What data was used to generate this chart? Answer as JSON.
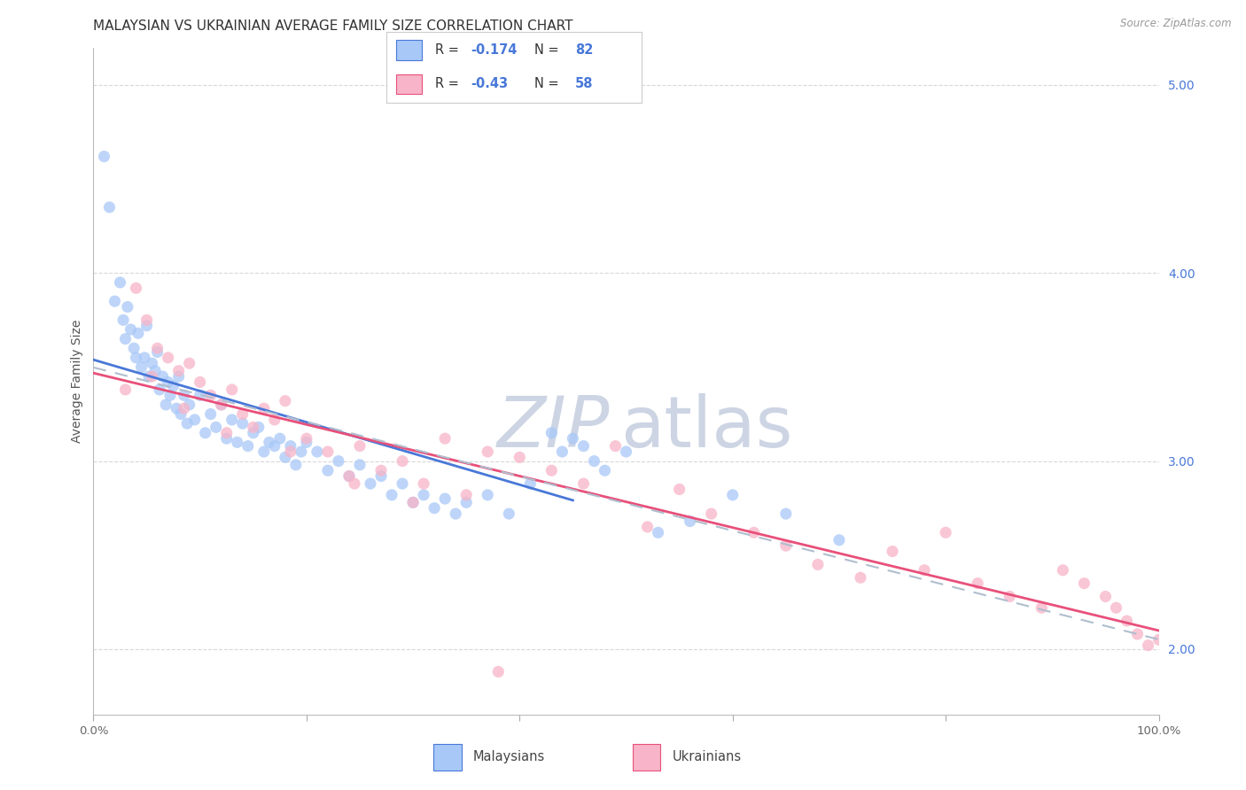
{
  "title": "MALAYSIAN VS UKRAINIAN AVERAGE FAMILY SIZE CORRELATION CHART",
  "source": "Source: ZipAtlas.com",
  "ylabel": "Average Family Size",
  "malaysia_R": -0.174,
  "malaysia_N": 82,
  "ukraine_R": -0.43,
  "ukraine_N": 58,
  "malaysia_color": "#a8c8f8",
  "ukraine_color": "#f8b4c8",
  "malaysia_line_color": "#4878d8",
  "ukraine_line_color": "#e8507a",
  "combined_line_color": "#b0bece",
  "right_tick_color": "#4878d8",
  "background_color": "#ffffff",
  "grid_color": "#d8d8d8",
  "title_fontsize": 11,
  "axis_label_fontsize": 10,
  "tick_fontsize": 9.5,
  "watermark_zip_color": "#cdd5e4",
  "watermark_atlas_color": "#cdd5e4",
  "xlim": [
    0,
    100
  ],
  "ylim": [
    1.65,
    5.2
  ],
  "yticks": [
    2.0,
    3.0,
    4.0,
    5.0
  ],
  "xticks": [
    0,
    20,
    40,
    60,
    80,
    100
  ],
  "xtick_labels": [
    "0.0%",
    "",
    "",
    "",
    "",
    "100.0%"
  ],
  "malaysia_x": [
    1.0,
    1.5,
    2.0,
    2.5,
    2.8,
    3.0,
    3.2,
    3.5,
    3.8,
    4.0,
    4.2,
    4.5,
    4.8,
    5.0,
    5.2,
    5.5,
    5.8,
    6.0,
    6.2,
    6.5,
    6.8,
    7.0,
    7.2,
    7.5,
    7.8,
    8.0,
    8.2,
    8.5,
    8.8,
    9.0,
    9.5,
    10.0,
    10.5,
    11.0,
    11.5,
    12.0,
    12.5,
    13.0,
    13.5,
    14.0,
    14.5,
    15.0,
    15.5,
    16.0,
    16.5,
    17.0,
    17.5,
    18.0,
    18.5,
    19.0,
    19.5,
    20.0,
    21.0,
    22.0,
    23.0,
    24.0,
    25.0,
    26.0,
    27.0,
    28.0,
    29.0,
    30.0,
    31.0,
    32.0,
    33.0,
    34.0,
    35.0,
    37.0,
    39.0,
    41.0,
    43.0,
    44.0,
    45.0,
    46.0,
    47.0,
    48.0,
    50.0,
    53.0,
    56.0,
    60.0,
    65.0,
    70.0
  ],
  "malaysia_y": [
    4.62,
    4.35,
    3.85,
    3.95,
    3.75,
    3.65,
    3.82,
    3.7,
    3.6,
    3.55,
    3.68,
    3.5,
    3.55,
    3.72,
    3.45,
    3.52,
    3.48,
    3.58,
    3.38,
    3.45,
    3.3,
    3.42,
    3.35,
    3.4,
    3.28,
    3.45,
    3.25,
    3.35,
    3.2,
    3.3,
    3.22,
    3.35,
    3.15,
    3.25,
    3.18,
    3.3,
    3.12,
    3.22,
    3.1,
    3.2,
    3.08,
    3.15,
    3.18,
    3.05,
    3.1,
    3.08,
    3.12,
    3.02,
    3.08,
    2.98,
    3.05,
    3.1,
    3.05,
    2.95,
    3.0,
    2.92,
    2.98,
    2.88,
    2.92,
    2.82,
    2.88,
    2.78,
    2.82,
    2.75,
    2.8,
    2.72,
    2.78,
    2.82,
    2.72,
    2.88,
    3.15,
    3.05,
    3.12,
    3.08,
    3.0,
    2.95,
    3.05,
    2.62,
    2.68,
    2.82,
    2.72,
    2.58
  ],
  "ukraine_x": [
    3.0,
    4.0,
    5.0,
    6.0,
    7.0,
    8.0,
    9.0,
    10.0,
    11.0,
    12.0,
    13.0,
    14.0,
    15.0,
    16.0,
    17.0,
    18.0,
    20.0,
    22.0,
    24.0,
    25.0,
    27.0,
    29.0,
    31.0,
    33.0,
    35.0,
    37.0,
    40.0,
    43.0,
    46.0,
    49.0,
    52.0,
    55.0,
    58.0,
    62.0,
    65.0,
    68.0,
    72.0,
    75.0,
    78.0,
    80.0,
    83.0,
    86.0,
    89.0,
    91.0,
    93.0,
    95.0,
    96.0,
    97.0,
    98.0,
    99.0,
    100.0,
    5.5,
    8.5,
    12.5,
    18.5,
    24.5,
    30.0,
    38.0
  ],
  "ukraine_y": [
    3.38,
    3.92,
    3.75,
    3.6,
    3.55,
    3.48,
    3.52,
    3.42,
    3.35,
    3.3,
    3.38,
    3.25,
    3.18,
    3.28,
    3.22,
    3.32,
    3.12,
    3.05,
    2.92,
    3.08,
    2.95,
    3.0,
    2.88,
    3.12,
    2.82,
    3.05,
    3.02,
    2.95,
    2.88,
    3.08,
    2.65,
    2.85,
    2.72,
    2.62,
    2.55,
    2.45,
    2.38,
    2.52,
    2.42,
    2.62,
    2.35,
    2.28,
    2.22,
    2.42,
    2.35,
    2.28,
    2.22,
    2.15,
    2.08,
    2.02,
    2.05,
    3.45,
    3.28,
    3.15,
    3.05,
    2.88,
    2.78,
    1.88
  ]
}
